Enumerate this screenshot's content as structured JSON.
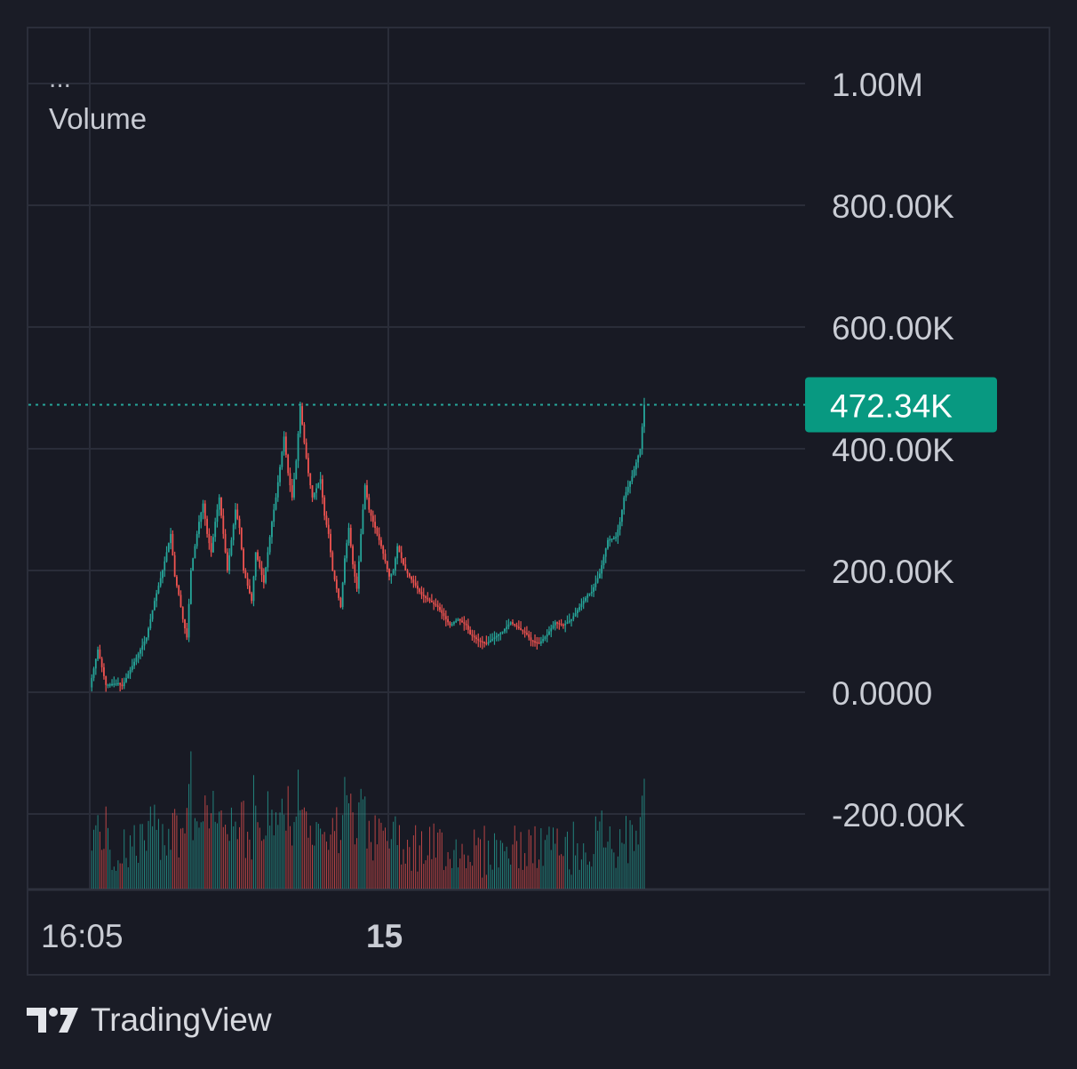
{
  "chart_data": {
    "type": "candlestick",
    "legend": {
      "menu": "...",
      "series_name": "Volume"
    },
    "y_axis": {
      "ticks": [
        {
          "value": 1000000,
          "label": "1.00M"
        },
        {
          "value": 800000,
          "label": "800.00K"
        },
        {
          "value": 600000,
          "label": "600.00K"
        },
        {
          "value": 400000,
          "label": "400.00K"
        },
        {
          "value": 200000,
          "label": "200.00K"
        },
        {
          "value": 0,
          "label": "0.0000"
        },
        {
          "value": -200000,
          "label": "-200.00K"
        }
      ],
      "range": [
        -330000,
        1090000
      ]
    },
    "x_axis": {
      "ticks": [
        {
          "label": "16:05",
          "index": 0,
          "bold": false
        },
        {
          "label": "15",
          "index": 114,
          "bold": true
        }
      ],
      "bar_count": 212
    },
    "last_price": {
      "value": 472340,
      "label": "472.34K"
    },
    "close_path": [
      [
        0,
        8000
      ],
      [
        4,
        70000
      ],
      [
        8,
        12000
      ],
      [
        14,
        15000
      ],
      [
        16,
        10000
      ],
      [
        22,
        50000
      ],
      [
        28,
        90000
      ],
      [
        32,
        150000
      ],
      [
        36,
        200000
      ],
      [
        40,
        260000
      ],
      [
        42,
        190000
      ],
      [
        44,
        160000
      ],
      [
        46,
        120000
      ],
      [
        48,
        90000
      ],
      [
        50,
        200000
      ],
      [
        54,
        280000
      ],
      [
        56,
        310000
      ],
      [
        58,
        260000
      ],
      [
        60,
        230000
      ],
      [
        62,
        280000
      ],
      [
        64,
        320000
      ],
      [
        66,
        260000
      ],
      [
        68,
        200000
      ],
      [
        72,
        300000
      ],
      [
        74,
        270000
      ],
      [
        76,
        200000
      ],
      [
        80,
        150000
      ],
      [
        82,
        230000
      ],
      [
        86,
        180000
      ],
      [
        90,
        280000
      ],
      [
        92,
        320000
      ],
      [
        96,
        420000
      ],
      [
        98,
        360000
      ],
      [
        100,
        320000
      ],
      [
        102,
        380000
      ],
      [
        104,
        470000
      ],
      [
        106,
        410000
      ],
      [
        108,
        360000
      ],
      [
        110,
        320000
      ],
      [
        114,
        350000
      ],
      [
        116,
        290000
      ],
      [
        118,
        260000
      ],
      [
        120,
        200000
      ],
      [
        122,
        170000
      ],
      [
        124,
        140000
      ],
      [
        126,
        220000
      ],
      [
        128,
        270000
      ],
      [
        130,
        210000
      ],
      [
        132,
        170000
      ],
      [
        134,
        260000
      ],
      [
        136,
        340000
      ],
      [
        138,
        300000
      ],
      [
        140,
        280000
      ],
      [
        144,
        240000
      ],
      [
        148,
        190000
      ],
      [
        150,
        200000
      ],
      [
        152,
        240000
      ],
      [
        156,
        200000
      ],
      [
        160,
        180000
      ],
      [
        164,
        160000
      ],
      [
        168,
        150000
      ],
      [
        172,
        140000
      ],
      [
        176,
        120000
      ],
      [
        178,
        110000
      ],
      [
        182,
        120000
      ],
      [
        186,
        110000
      ],
      [
        188,
        95000
      ],
      [
        192,
        85000
      ],
      [
        196,
        80000
      ],
      [
        200,
        90000
      ],
      [
        204,
        100000
      ],
      [
        208,
        115000
      ],
      [
        212,
        105000
      ],
      [
        216,
        95000
      ],
      [
        218,
        85000
      ],
      [
        222,
        80000
      ],
      [
        226,
        95000
      ],
      [
        230,
        115000
      ],
      [
        234,
        110000
      ],
      [
        238,
        120000
      ],
      [
        242,
        140000
      ],
      [
        246,
        160000
      ],
      [
        248,
        165000
      ],
      [
        252,
        195000
      ],
      [
        256,
        250000
      ],
      [
        260,
        255000
      ],
      [
        262,
        280000
      ],
      [
        264,
        320000
      ],
      [
        268,
        355000
      ],
      [
        272,
        400000
      ],
      [
        274,
        472340
      ]
    ],
    "volume_panel": {
      "bar_count": 120
    },
    "colors": {
      "up": "#26a69a",
      "down": "#ef5350",
      "grid": "#2a2d39",
      "background": "#181a24",
      "text": "#c9ccd4",
      "last_price_badge": "#089981"
    }
  },
  "footer": {
    "brand": "TradingView"
  }
}
